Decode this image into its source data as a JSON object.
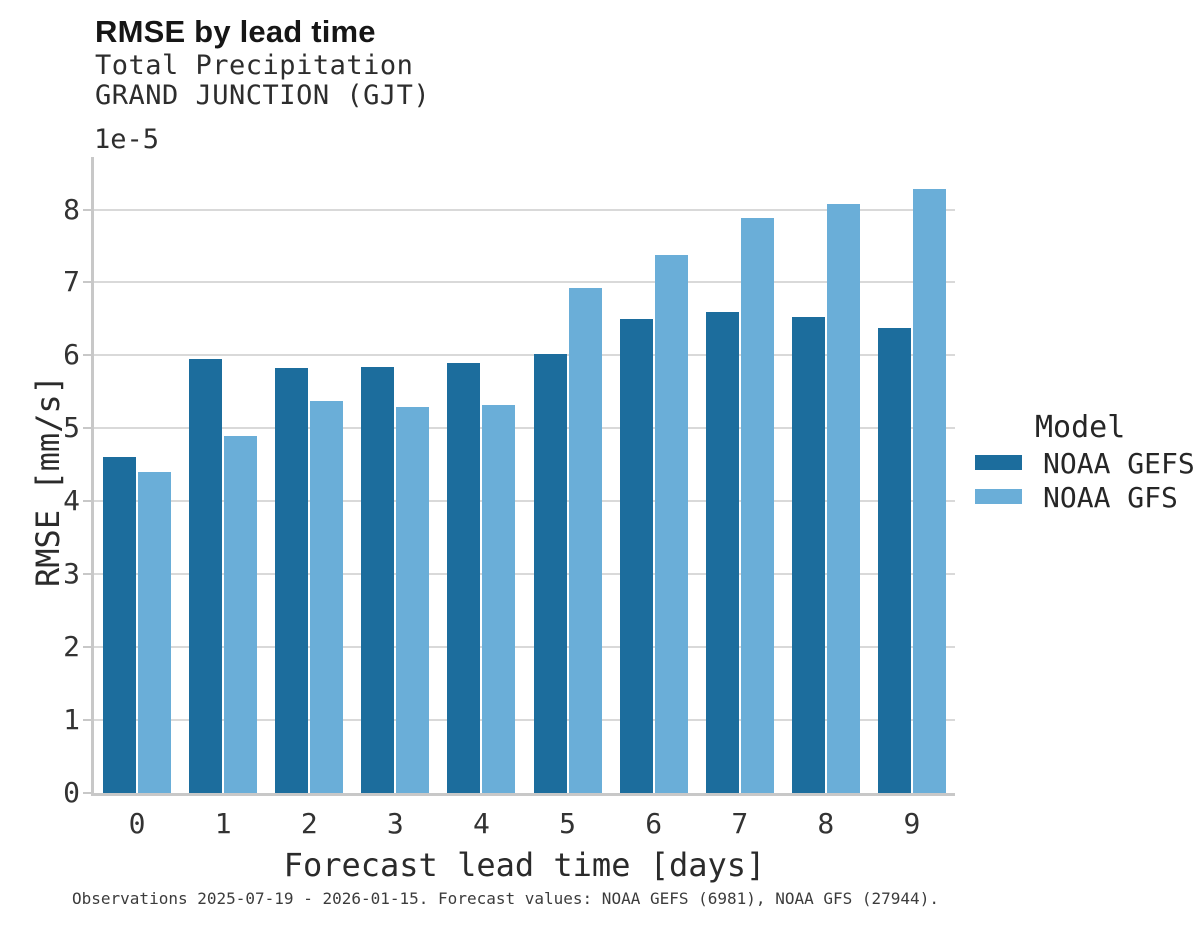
{
  "chart_data": {
    "type": "bar",
    "title": "RMSE by lead time",
    "subtitle1": "Total Precipitation",
    "subtitle2": "GRAND JUNCTION (GJT)",
    "offset_label": "1e-5",
    "xlabel": "Forecast lead time [days]",
    "ylabel": "RMSE [mm/s]",
    "categories": [
      "0",
      "1",
      "2",
      "3",
      "4",
      "5",
      "6",
      "7",
      "8",
      "9"
    ],
    "series": [
      {
        "name": "NOAA GEFS",
        "color": "#1c6d9d",
        "values": [
          4.6,
          5.95,
          5.83,
          5.84,
          5.89,
          6.02,
          6.5,
          6.59,
          6.53,
          6.38
        ]
      },
      {
        "name": "NOAA GFS",
        "color": "#6aaed8",
        "values": [
          4.4,
          4.89,
          5.38,
          5.29,
          5.32,
          6.93,
          7.37,
          7.89,
          8.07,
          8.28
        ]
      }
    ],
    "value_units": "mm/s, values multiplied by 1e-5",
    "yticks": [
      0,
      1,
      2,
      3,
      4,
      5,
      6,
      7,
      8
    ],
    "ylim": [
      0,
      8.72
    ],
    "grid": "horizontal",
    "legend": {
      "title": "Model",
      "position": "right"
    }
  },
  "caption": "Observations 2025-07-19 - 2026-01-15. Forecast values: NOAA GEFS (6981), NOAA GFS (27944)."
}
